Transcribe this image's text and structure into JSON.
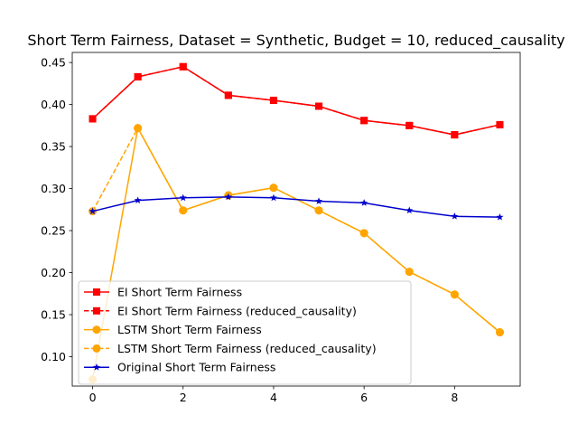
{
  "chart_data": {
    "type": "line",
    "title": "Short Term Fairness, Dataset = Synthetic, Budget = 10, reduced_causality",
    "xlabel": "",
    "ylabel": "",
    "xlim": [
      -0.45,
      9.45
    ],
    "ylim": [
      0.065,
      0.462
    ],
    "xticks": [
      0,
      2,
      4,
      6,
      8
    ],
    "yticks": [
      0.1,
      0.15,
      0.2,
      0.25,
      0.3,
      0.35,
      0.4,
      0.45
    ],
    "grid": false,
    "legend_position": "lower-left",
    "x": [
      0,
      1,
      2,
      3,
      4,
      5,
      6,
      7,
      8,
      9
    ],
    "series": [
      {
        "name": "EI Short Term Fairness",
        "color": "#ff0000",
        "marker": "square",
        "linestyle": "solid",
        "values": [
          0.383,
          0.433,
          0.445,
          0.411,
          0.405,
          0.398,
          0.381,
          0.375,
          0.364,
          0.376
        ]
      },
      {
        "name": "EI Short Term Fairness (reduced_causality)",
        "color": "#ff0000",
        "marker": "square",
        "linestyle": "dashed",
        "values": [
          0.383,
          0.433,
          0.445,
          0.411,
          0.405,
          0.398,
          0.381,
          0.375,
          0.364,
          0.376
        ]
      },
      {
        "name": "LSTM Short Term Fairness",
        "color": "#ffa500",
        "marker": "circle",
        "linestyle": "solid",
        "values": [
          0.073,
          0.372,
          0.274,
          0.292,
          0.301,
          0.274,
          0.247,
          0.201,
          0.174,
          0.129
        ]
      },
      {
        "name": "LSTM Short Term Fairness (reduced_causality)",
        "color": "#ffa500",
        "marker": "circle",
        "linestyle": "dashed",
        "values": [
          0.273,
          0.372,
          0.274,
          0.292,
          0.301,
          0.274,
          0.247,
          0.201,
          0.174,
          0.129
        ]
      },
      {
        "name": "Original Short Term Fairness",
        "color": "#0000cd",
        "marker": "star",
        "linestyle": "solid",
        "values": [
          0.273,
          0.286,
          0.289,
          0.29,
          0.289,
          0.285,
          0.283,
          0.274,
          0.267,
          0.266
        ]
      }
    ]
  }
}
